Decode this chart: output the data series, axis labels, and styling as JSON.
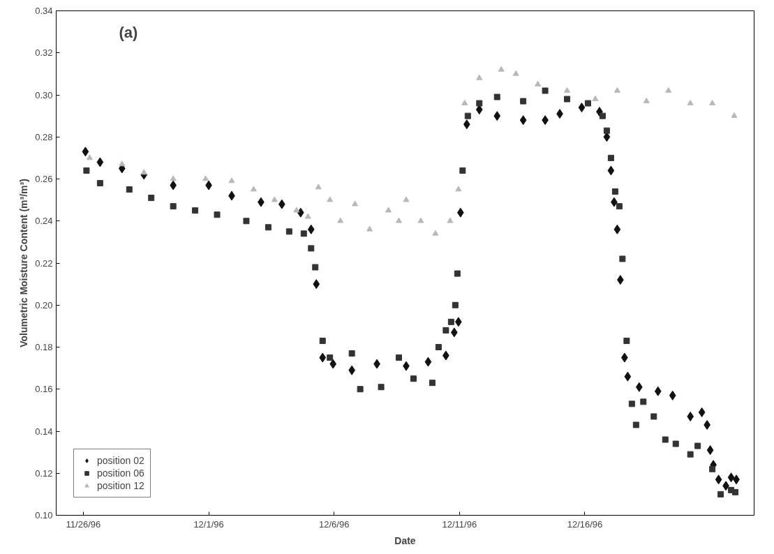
{
  "chart_data": {
    "type": "scatter",
    "xlabel": "Date",
    "ylabel": "Volumetric Moisture Content (m³/m³)",
    "annotations": [
      "(a)"
    ],
    "grid": false,
    "legend": "bottom left",
    "xlim": [
      "1996-11-24T22:00",
      "1996-12-22T18:00"
    ],
    "ylim": [
      0.1,
      0.34
    ],
    "xticks": [
      {
        "value": "1996-11-26",
        "label": "11/26/96"
      },
      {
        "value": "1996-12-01",
        "label": "12/1/96"
      },
      {
        "value": "1996-12-06",
        "label": "12/6/96"
      },
      {
        "value": "1996-12-11",
        "label": "12/11/96"
      },
      {
        "value": "1996-12-16",
        "label": "12/16/96"
      }
    ],
    "yticks": [
      {
        "value": 0.1,
        "label": "0.10"
      },
      {
        "value": 0.12,
        "label": "0.12"
      },
      {
        "value": 0.14,
        "label": "0.14"
      },
      {
        "value": 0.16,
        "label": "0.16"
      },
      {
        "value": 0.18,
        "label": "0.18"
      },
      {
        "value": 0.2,
        "label": "0.20"
      },
      {
        "value": 0.22,
        "label": "0.22"
      },
      {
        "value": 0.24,
        "label": "0.24"
      },
      {
        "value": 0.26,
        "label": "0.26"
      },
      {
        "value": 0.28,
        "label": "0.28"
      },
      {
        "value": 0.3,
        "label": "0.30"
      },
      {
        "value": 0.32,
        "label": "0.32"
      },
      {
        "value": 0.34,
        "label": "0.34"
      }
    ],
    "series": [
      {
        "name": "position 02",
        "color": "#111111",
        "marker": "diamond",
        "x": [
          "1996-11-26T02:00",
          "1996-11-26T16:00",
          "1996-11-27T13:00",
          "1996-11-28T10:00",
          "1996-11-29T14:00",
          "1996-12-01T00:00",
          "1996-12-01T22:00",
          "1996-12-03T02:00",
          "1996-12-03T22:00",
          "1996-12-04T16:00",
          "1996-12-05T02:00",
          "1996-12-05T07:00",
          "1996-12-05T13:00",
          "1996-12-05T23:00",
          "1996-12-06T17:00",
          "1996-12-07T17:00",
          "1996-12-08T21:00",
          "1996-12-09T18:00",
          "1996-12-10T11:00",
          "1996-12-10T19:00",
          "1996-12-10T23:00",
          "1996-12-11T01:00",
          "1996-12-11T07:00",
          "1996-12-11T19:00",
          "1996-12-12T12:00",
          "1996-12-13T13:00",
          "1996-12-14T10:00",
          "1996-12-15T00:00",
          "1996-12-15T21:00",
          "1996-12-16T14:00",
          "1996-12-16T21:00",
          "1996-12-17T01:00",
          "1996-12-17T04:00",
          "1996-12-17T07:00",
          "1996-12-17T10:00",
          "1996-12-17T14:00",
          "1996-12-17T17:00",
          "1996-12-18T04:00",
          "1996-12-18T22:00",
          "1996-12-19T12:00",
          "1996-12-20T05:00",
          "1996-12-20T16:00",
          "1996-12-20T21:00",
          "1996-12-21T00:00",
          "1996-12-21T03:00",
          "1996-12-21T08:00",
          "1996-12-21T15:00",
          "1996-12-21T20:00",
          "1996-12-22T01:00"
        ],
        "values": [
          0.273,
          0.268,
          0.265,
          0.262,
          0.257,
          0.257,
          0.252,
          0.249,
          0.248,
          0.244,
          0.236,
          0.21,
          0.175,
          0.172,
          0.169,
          0.172,
          0.171,
          0.173,
          0.176,
          0.187,
          0.192,
          0.244,
          0.286,
          0.293,
          0.29,
          0.288,
          0.288,
          0.291,
          0.294,
          0.292,
          0.28,
          0.264,
          0.249,
          0.236,
          0.212,
          0.175,
          0.166,
          0.161,
          0.159,
          0.157,
          0.147,
          0.149,
          0.143,
          0.131,
          0.124,
          0.117,
          0.114,
          0.118,
          0.117
        ]
      },
      {
        "name": "position 06",
        "color": "#333333",
        "marker": "square",
        "x": [
          "1996-11-26T03:00",
          "1996-11-26T16:00",
          "1996-11-27T20:00",
          "1996-11-28T17:00",
          "1996-11-29T14:00",
          "1996-11-30T11:00",
          "1996-12-01T08:00",
          "1996-12-02T12:00",
          "1996-12-03T09:00",
          "1996-12-04T05:00",
          "1996-12-04T19:00",
          "1996-12-05T02:00",
          "1996-12-05T06:00",
          "1996-12-05T13:00",
          "1996-12-05T20:00",
          "1996-12-06T17:00",
          "1996-12-07T01:00",
          "1996-12-07T21:00",
          "1996-12-08T14:00",
          "1996-12-09T04:00",
          "1996-12-09T22:00",
          "1996-12-10T04:00",
          "1996-12-10T11:00",
          "1996-12-10T16:00",
          "1996-12-10T20:00",
          "1996-12-10T22:00",
          "1996-12-11T03:00",
          "1996-12-11T08:00",
          "1996-12-11T19:00",
          "1996-12-12T12:00",
          "1996-12-13T13:00",
          "1996-12-14T10:00",
          "1996-12-15T07:00",
          "1996-12-16T03:00",
          "1996-12-16T17:00",
          "1996-12-16T21:00",
          "1996-12-17T01:00",
          "1996-12-17T05:00",
          "1996-12-17T09:00",
          "1996-12-17T12:00",
          "1996-12-17T16:00",
          "1996-12-17T21:00",
          "1996-12-18T01:00",
          "1996-12-18T08:00",
          "1996-12-18T18:00",
          "1996-12-19T05:00",
          "1996-12-19T15:00",
          "1996-12-20T05:00",
          "1996-12-20T12:00",
          "1996-12-21T02:00",
          "1996-12-21T10:00",
          "1996-12-21T20:00",
          "1996-12-22T00:00"
        ],
        "values": [
          0.264,
          0.258,
          0.255,
          0.251,
          0.247,
          0.245,
          0.243,
          0.24,
          0.237,
          0.235,
          0.234,
          0.227,
          0.218,
          0.183,
          0.175,
          0.177,
          0.16,
          0.161,
          0.175,
          0.165,
          0.163,
          0.18,
          0.188,
          0.192,
          0.2,
          0.215,
          0.264,
          0.29,
          0.296,
          0.299,
          0.297,
          0.302,
          0.298,
          0.296,
          0.29,
          0.283,
          0.27,
          0.254,
          0.247,
          0.222,
          0.183,
          0.153,
          0.143,
          0.154,
          0.147,
          0.136,
          0.134,
          0.129,
          0.133,
          0.122,
          0.11,
          0.112,
          0.111
        ]
      },
      {
        "name": "position 12",
        "color": "#b8b8b8",
        "marker": "triangle",
        "x": [
          "1996-11-26T06:00",
          "1996-11-27T13:00",
          "1996-11-28T10:00",
          "1996-11-29T14:00",
          "1996-11-30T21:00",
          "1996-12-01T22:00",
          "1996-12-02T19:00",
          "1996-12-03T15:00",
          "1996-12-04T12:00",
          "1996-12-04T23:00",
          "1996-12-05T09:00",
          "1996-12-05T20:00",
          "1996-12-06T06:00",
          "1996-12-06T20:00",
          "1996-12-07T10:00",
          "1996-12-08T04:00",
          "1996-12-08T14:00",
          "1996-12-08T21:00",
          "1996-12-09T11:00",
          "1996-12-10T01:00",
          "1996-12-10T15:00",
          "1996-12-10T23:00",
          "1996-12-11T05:00",
          "1996-12-11T19:00",
          "1996-12-12T16:00",
          "1996-12-13T06:00",
          "1996-12-14T03:00",
          "1996-12-15T07:00",
          "1996-12-16T10:00",
          "1996-12-17T07:00",
          "1996-12-18T11:00",
          "1996-12-19T08:00",
          "1996-12-20T05:00",
          "1996-12-21T02:00",
          "1996-12-21T23:00"
        ],
        "values": [
          0.27,
          0.267,
          0.263,
          0.26,
          0.26,
          0.259,
          0.255,
          0.25,
          0.245,
          0.242,
          0.256,
          0.25,
          0.24,
          0.248,
          0.236,
          0.245,
          0.24,
          0.25,
          0.24,
          0.234,
          0.24,
          0.255,
          0.296,
          0.308,
          0.312,
          0.31,
          0.305,
          0.302,
          0.298,
          0.302,
          0.297,
          0.302,
          0.296,
          0.296,
          0.29
        ]
      }
    ]
  }
}
